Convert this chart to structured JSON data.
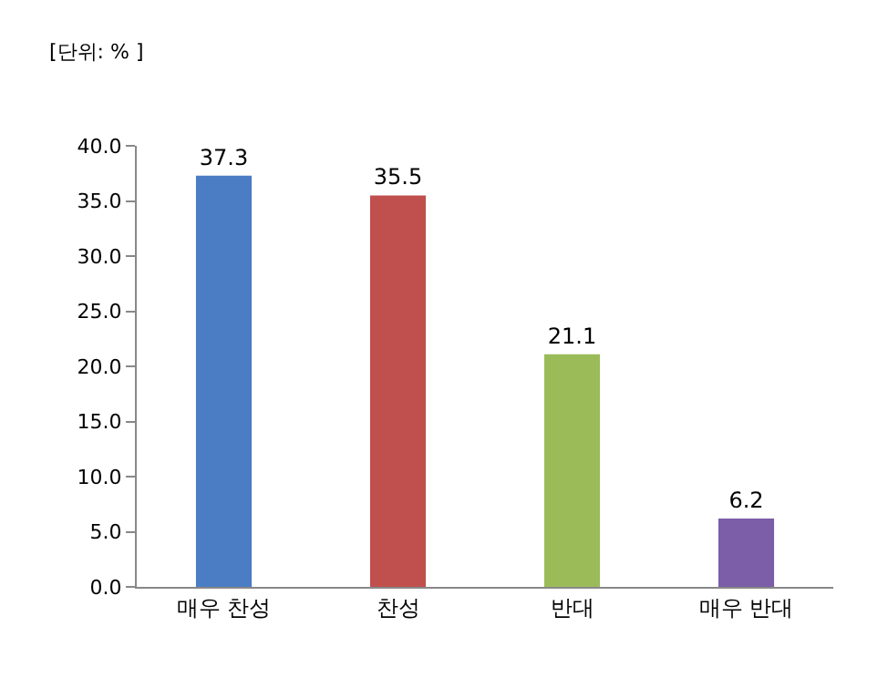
{
  "chart_data": {
    "type": "bar",
    "annotations": [
      "[단위: % ]"
    ],
    "categories": [
      "매우 찬성",
      "찬성",
      "반대",
      "매우 반대"
    ],
    "values": [
      37.3,
      35.5,
      21.1,
      6.2
    ],
    "colors": [
      "#4a7dc4",
      "#c0504d",
      "#9bbb59",
      "#7b5ea7"
    ],
    "data_labels": true,
    "ylim": [
      0,
      40
    ],
    "yticks": [
      {
        "value": 0,
        "label": "0.0"
      },
      {
        "value": 5,
        "label": "5.0"
      },
      {
        "value": 10,
        "label": "10.0"
      },
      {
        "value": 15,
        "label": "15.0"
      },
      {
        "value": 20,
        "label": "20.0"
      },
      {
        "value": 25,
        "label": "25.0"
      },
      {
        "value": 30,
        "label": "30.0"
      },
      {
        "value": 35,
        "label": "35.0"
      },
      {
        "value": 40,
        "label": "40.0"
      }
    ],
    "grid": false
  }
}
